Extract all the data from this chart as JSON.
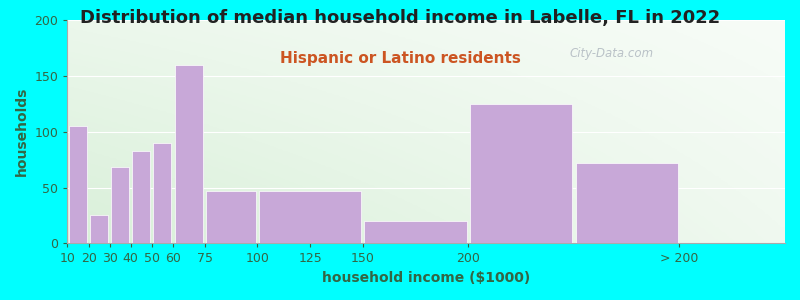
{
  "title": "Distribution of median household income in Labelle, FL in 2022",
  "subtitle": "Hispanic or Latino residents",
  "xlabel": "household income ($1000)",
  "ylabel": "households",
  "background_color": "#00FFFF",
  "bar_color": "#c8a8d8",
  "bar_edge_color": "#ffffff",
  "title_fontsize": 13,
  "subtitle_fontsize": 11,
  "axis_label_fontsize": 10,
  "tick_fontsize": 9,
  "title_color": "#222222",
  "subtitle_color": "#cc5522",
  "axis_label_color": "#336644",
  "tick_color": "#336644",
  "watermark_text": "City-Data.com",
  "watermark_color": "#b0b8c0",
  "ylim": [
    0,
    200
  ],
  "yticks": [
    0,
    50,
    100,
    150,
    200
  ],
  "bar_lefts": [
    10,
    20,
    30,
    40,
    50,
    60,
    75,
    100,
    150,
    200,
    250
  ],
  "bar_widths": [
    10,
    10,
    10,
    10,
    10,
    15,
    25,
    50,
    50,
    50,
    50
  ],
  "bar_heights": [
    105,
    25,
    68,
    83,
    90,
    160,
    47,
    47,
    20,
    125,
    72
  ],
  "xtick_pos": [
    10,
    20,
    30,
    40,
    50,
    60,
    75,
    100,
    125,
    150,
    200,
    300
  ],
  "xtick_labels": [
    "10",
    "20",
    "30",
    "40",
    "50",
    "60",
    "75",
    "100",
    "125",
    "150",
    "200",
    "> 200"
  ],
  "xlim": [
    10,
    350
  ]
}
